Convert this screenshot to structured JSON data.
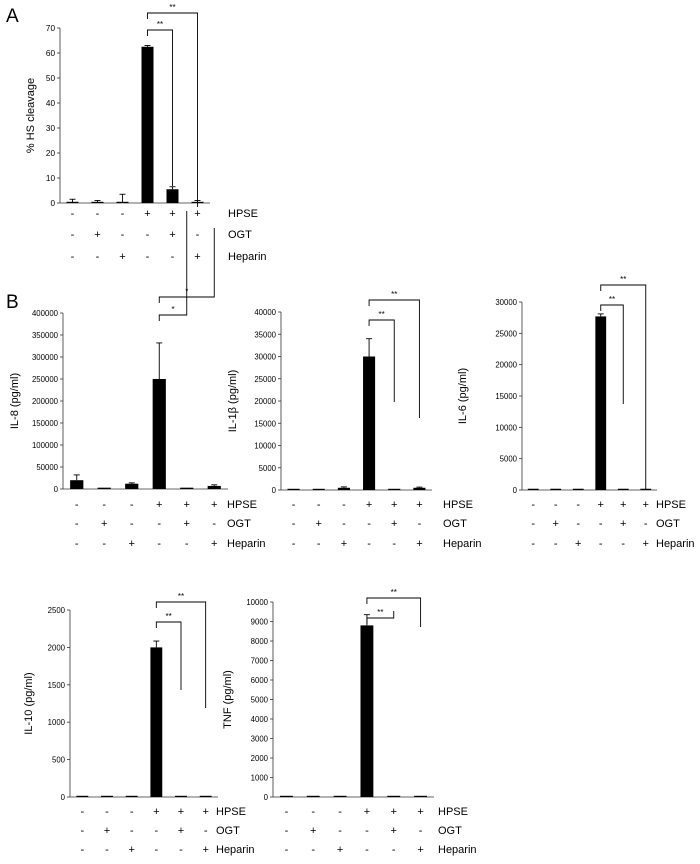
{
  "panel_labels": [
    "A",
    "B"
  ],
  "condition_rows": [
    "HPSE",
    "OGT",
    "Heparin"
  ],
  "conditions": [
    [
      "-",
      "-",
      "-"
    ],
    [
      "-",
      "+",
      "-"
    ],
    [
      "-",
      "-",
      "+"
    ],
    [
      "+",
      "-",
      "-"
    ],
    [
      "+",
      "+",
      "-"
    ],
    [
      "+",
      "-",
      "+"
    ]
  ],
  "chart_data": [
    {
      "type": "bar",
      "ylabel": "% HS cleavage",
      "ylim": [
        0,
        70
      ],
      "yticks": [
        "0",
        "10",
        "20",
        "30",
        "40",
        "50",
        "60",
        "70"
      ],
      "values": [
        0,
        0,
        0,
        62.5,
        5.5,
        0
      ],
      "errors": [
        1.5,
        1,
        3.5,
        0.5,
        1,
        1
      ],
      "significance": [
        "**",
        "**"
      ]
    },
    {
      "type": "bar",
      "ylabel": "IL-8 (pg/ml)",
      "ylim": [
        0,
        400000
      ],
      "yticks": [
        "0",
        "50000",
        "100000",
        "150000",
        "200000",
        "250000",
        "300000",
        "350000",
        "400000"
      ],
      "values": [
        20000,
        3000,
        12000,
        250000,
        3000,
        7000
      ],
      "errors": [
        12000,
        0,
        2000,
        82000,
        0,
        2500
      ],
      "significance": [
        "*",
        "*"
      ]
    },
    {
      "type": "bar",
      "ylabel": "IL-1β (pg/ml)",
      "ylim": [
        0,
        40000
      ],
      "yticks": [
        "0",
        "5000",
        "10000",
        "15000",
        "20000",
        "25000",
        "30000",
        "35000",
        "40000"
      ],
      "values": [
        200,
        200,
        500,
        30000,
        200,
        500
      ],
      "errors": [
        0,
        0,
        200,
        4000,
        0,
        150
      ],
      "significance": [
        "**",
        "**"
      ]
    },
    {
      "type": "bar",
      "ylabel": "IL-6 (pg/ml)",
      "ylim": [
        0,
        30000
      ],
      "yticks": [
        "0",
        "5000",
        "10000",
        "15000",
        "20000",
        "25000",
        "30000"
      ],
      "values": [
        200,
        200,
        200,
        27700,
        200,
        200
      ],
      "errors": [
        0,
        0,
        0,
        400,
        0,
        0
      ],
      "significance": [
        "**",
        "**"
      ]
    },
    {
      "type": "bar",
      "ylabel": "IL-10 (pg/ml)",
      "ylim": [
        0,
        2500
      ],
      "yticks": [
        "0",
        "500",
        "1000",
        "1500",
        "2000",
        "2500"
      ],
      "values": [
        10,
        10,
        10,
        2000,
        10,
        10
      ],
      "errors": [
        0,
        0,
        0,
        85,
        0,
        0
      ],
      "significance": [
        "**",
        "**"
      ]
    },
    {
      "type": "bar",
      "ylabel": "TNF (pg/ml)",
      "ylim": [
        0,
        10000
      ],
      "yticks": [
        "0",
        "1000",
        "2000",
        "3000",
        "4000",
        "5000",
        "6000",
        "7000",
        "8000",
        "9000",
        "10000"
      ],
      "values": [
        20,
        20,
        20,
        8800,
        20,
        20
      ],
      "errors": [
        0,
        0,
        0,
        550,
        0,
        0
      ],
      "significance": [
        "**",
        "**"
      ]
    }
  ]
}
